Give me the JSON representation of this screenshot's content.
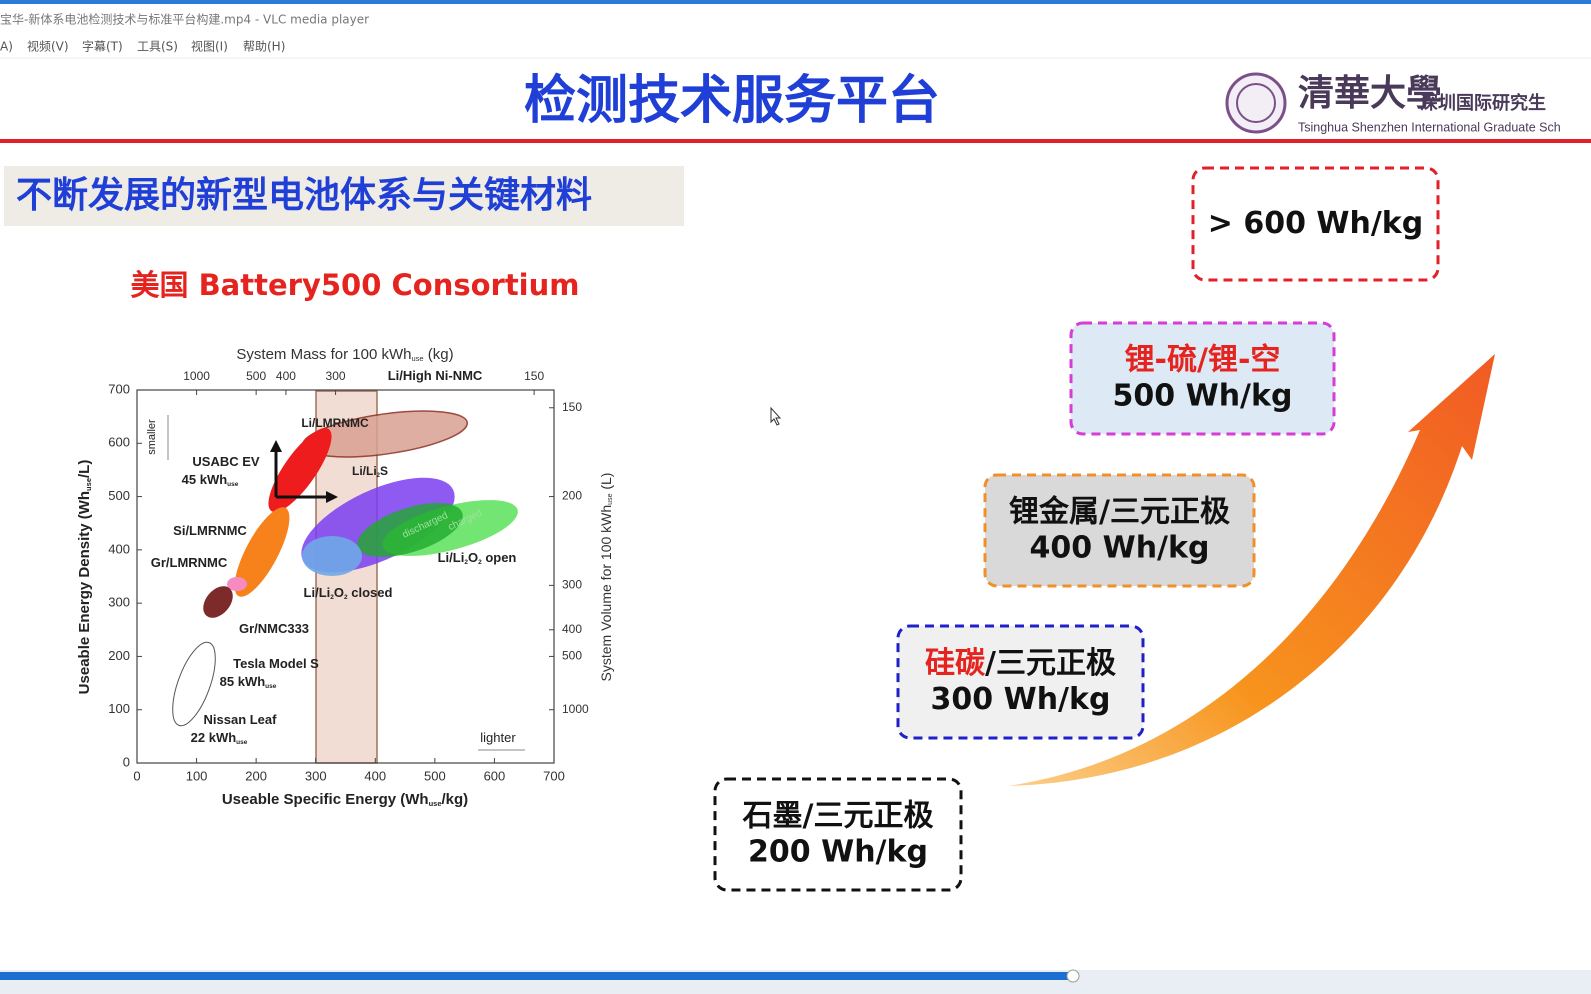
{
  "window": {
    "title": "宝华-新体系电池检测技术与标准平台构建.mp4 - VLC media player",
    "menu": [
      "A)",
      "视频(V)",
      "字幕(T)",
      "工具(S)",
      "视图(I)",
      "帮助(H)"
    ]
  },
  "slide": {
    "title": "检测技术服务平台",
    "logo": {
      "cn": "清華大學",
      "cn_sub": "深圳国际研究生",
      "en": "Tsinghua Shenzhen International Graduate Sch"
    },
    "section": "不断发展的新型电池体系与关键材料",
    "caption": "美国 Battery500 Consortium",
    "figure": {
      "top_title": [
        "System Mass for 100 kWh",
        "use",
        " (kg)"
      ],
      "top_ticks": [
        1000,
        500,
        400,
        300,
        150
      ],
      "x_ticks": [
        0,
        100,
        200,
        300,
        400,
        500,
        600,
        700
      ],
      "y_ticks": [
        0,
        100,
        200,
        300,
        400,
        500,
        600,
        700
      ],
      "right_ticks": [
        150,
        200,
        300,
        400,
        500,
        1000
      ],
      "x_title": [
        "Useable Specific Energy (Wh",
        "use",
        "/kg)"
      ],
      "y_title": [
        "Useable Energy Density (Wh",
        "use",
        "/L)"
      ],
      "right_title": [
        "System Volume for 100 kWh",
        "use",
        " (L)"
      ],
      "labels": [
        [
          "Li/High Ni-NMC"
        ],
        [
          "Li/LMRNMC"
        ],
        [
          "Li/Li",
          "2",
          "S"
        ],
        [
          "USABC EV"
        ],
        [
          "45 kWh",
          "use"
        ],
        [
          "Si/LMRNMC"
        ],
        [
          "Gr/LMRNMC"
        ],
        [
          "Gr/NMC333"
        ],
        [
          "Tesla Model S"
        ],
        [
          "85 kWh",
          "use"
        ],
        [
          "Nissan Leaf"
        ],
        [
          "22 kWh",
          "use"
        ],
        [
          "Li/Li",
          "2",
          "O",
          "2",
          " open"
        ],
        [
          "Li/Li",
          "2",
          "O",
          "2",
          " closed"
        ],
        [
          "lighter"
        ],
        [
          "smaller"
        ],
        [
          "discharged"
        ],
        [
          "charged"
        ]
      ]
    },
    "roadmap": [
      {
        "lines": [
          [
            {
              "text": "> 600 Wh/kg",
              "color": "#111111"
            }
          ]
        ]
      },
      {
        "lines": [
          [
            {
              "text": "锂-硫/锂-空",
              "color": "#e52420"
            }
          ],
          [
            {
              "text": "500 Wh/kg",
              "color": "#111111"
            }
          ]
        ]
      },
      {
        "lines": [
          [
            {
              "text": "锂金属/三元正极",
              "color": "#111111"
            }
          ],
          [
            {
              "text": "400 Wh/kg",
              "color": "#111111"
            }
          ]
        ]
      },
      {
        "lines": [
          [
            {
              "text": "硅碳",
              "color": "#e52420"
            },
            {
              "text": "/三元正极",
              "color": "#111111"
            }
          ],
          [
            {
              "text": "300 Wh/kg",
              "color": "#111111"
            }
          ]
        ]
      },
      {
        "lines": [
          [
            {
              "text": "石墨/三元正极",
              "color": "#111111"
            }
          ],
          [
            {
              "text": "200 Wh/kg",
              "color": "#111111"
            }
          ]
        ]
      }
    ]
  }
}
